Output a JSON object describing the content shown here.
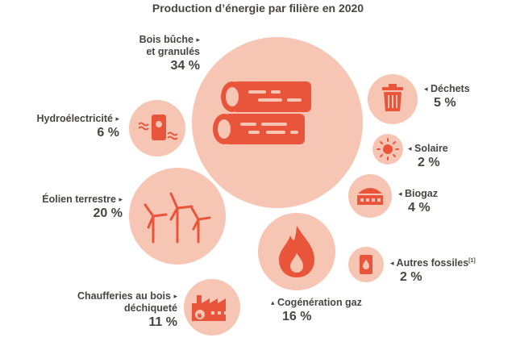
{
  "title": "Production d’énergie par filière en  2020",
  "colors": {
    "accent": "#e9553b",
    "bubble": "#f7c5b3",
    "text": "#4a4441"
  },
  "sectors": [
    {
      "key": "bois",
      "label_line1": "Bois bûche",
      "label_line2": "et granulés",
      "value": "34 %",
      "icon": "logs-icon"
    },
    {
      "key": "hydro",
      "label_line1": "Hydroélectricité",
      "value": "6 %",
      "icon": "hydro-plant-icon"
    },
    {
      "key": "eolien",
      "label_line1": "Éolien terrestre",
      "value": "20 %",
      "icon": "wind-turbines-icon"
    },
    {
      "key": "chaufferies",
      "label_line1": "Chaufferies au bois",
      "label_line2": "déchiqueté",
      "value": "11 %",
      "icon": "factory-fire-icon"
    },
    {
      "key": "cogeneration",
      "label_line1": "Cogénération gaz",
      "value": "16 %",
      "icon": "flame-icon"
    },
    {
      "key": "dechets",
      "label_line1": "Déchets",
      "value": "5 %",
      "icon": "trash-bin-icon"
    },
    {
      "key": "solaire",
      "label_line1": "Solaire",
      "value": "2 %",
      "icon": "sun-icon"
    },
    {
      "key": "biogaz",
      "label_line1": "Biogaz",
      "value": "4 %",
      "icon": "biogas-digester-icon"
    },
    {
      "key": "autres",
      "label_line1": "Autres fossiles",
      "footnote": "[1]",
      "value": "2 %",
      "icon": "fuel-barrel-icon"
    }
  ],
  "markers": {
    "left": "▸",
    "right": "◂",
    "up": "▴"
  }
}
